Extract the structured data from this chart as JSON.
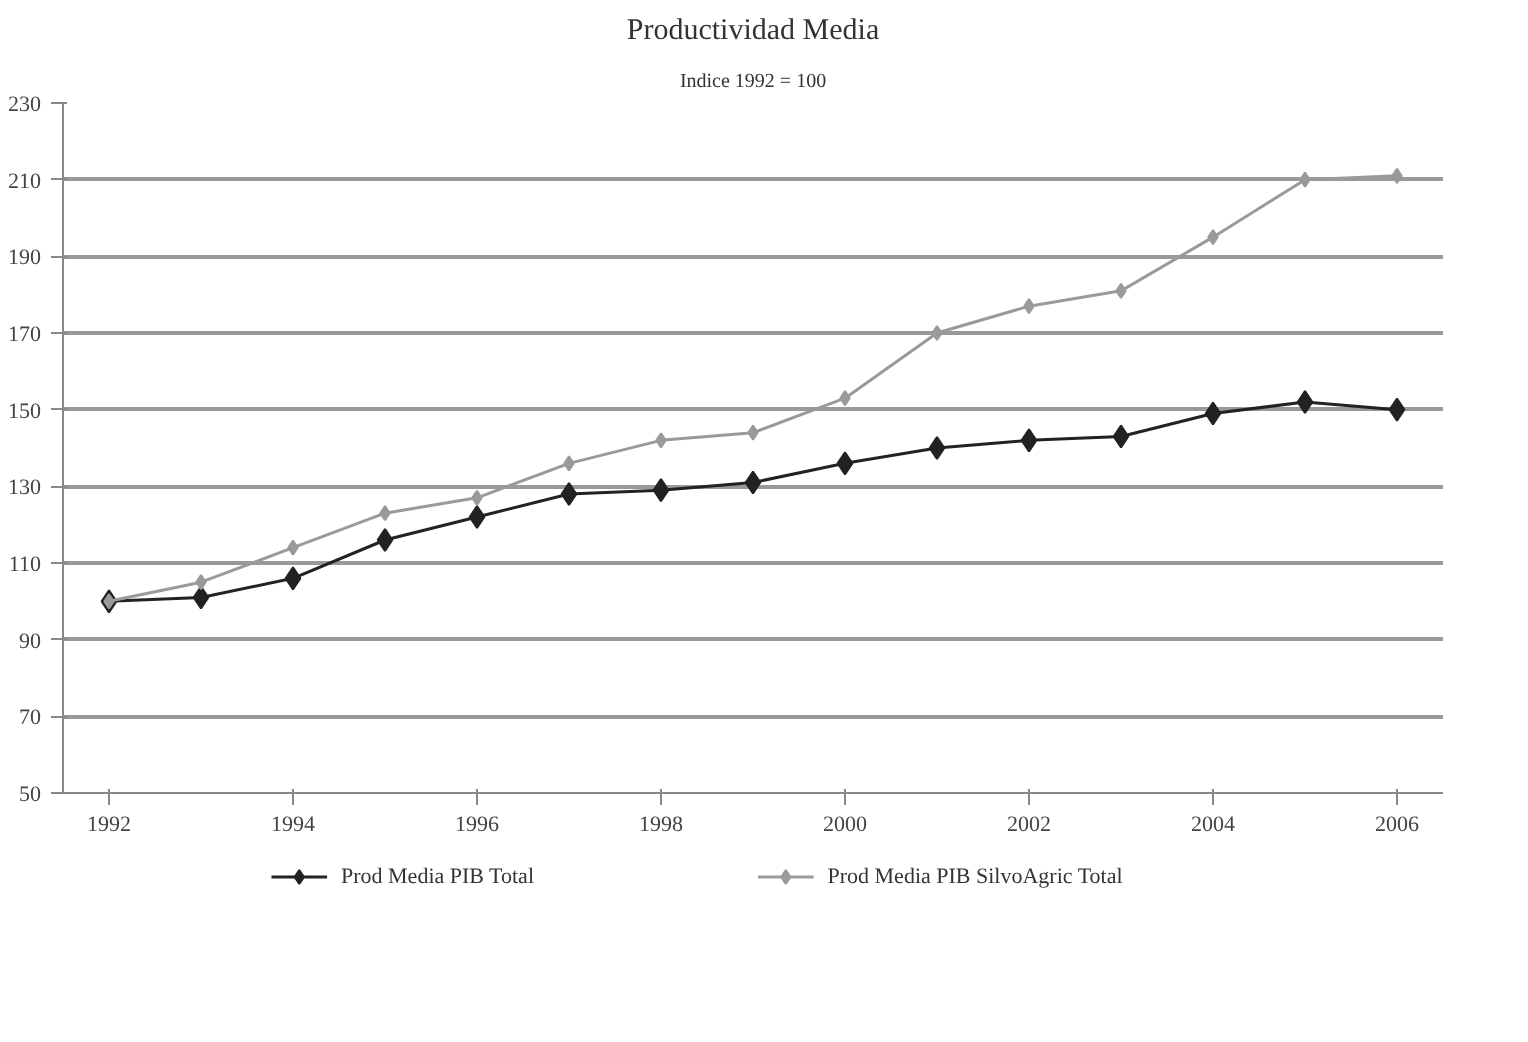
{
  "chart_data": {
    "type": "line",
    "title": "Productividad Media",
    "subtitle": "Indice 1992 = 100",
    "x": [
      1992,
      1993,
      1994,
      1995,
      1996,
      1997,
      1998,
      1999,
      2000,
      2001,
      2002,
      2003,
      2004,
      2005,
      2006
    ],
    "series": [
      {
        "name": "Prod Media PIB Total",
        "color": "#222222",
        "values": [
          100,
          101,
          106,
          116,
          122,
          128,
          129,
          131,
          136,
          140,
          142,
          143,
          149,
          152,
          150
        ]
      },
      {
        "name": "Prod Media PIB SilvoAgric Total",
        "color": "#9a9a9a",
        "values": [
          100,
          105,
          114,
          123,
          127,
          136,
          142,
          144,
          153,
          170,
          177,
          181,
          195,
          210,
          211
        ]
      }
    ],
    "xlim": [
      1991.5,
      2006.5
    ],
    "xticks": [
      1992,
      1994,
      1996,
      1998,
      2000,
      2002,
      2004,
      2006
    ],
    "ylim": [
      50,
      230
    ],
    "yticks": [
      50,
      70,
      90,
      110,
      130,
      150,
      170,
      190,
      210,
      230
    ],
    "grid": "y",
    "legend": "bottom",
    "marker": "diamond",
    "line_style": "solid"
  }
}
